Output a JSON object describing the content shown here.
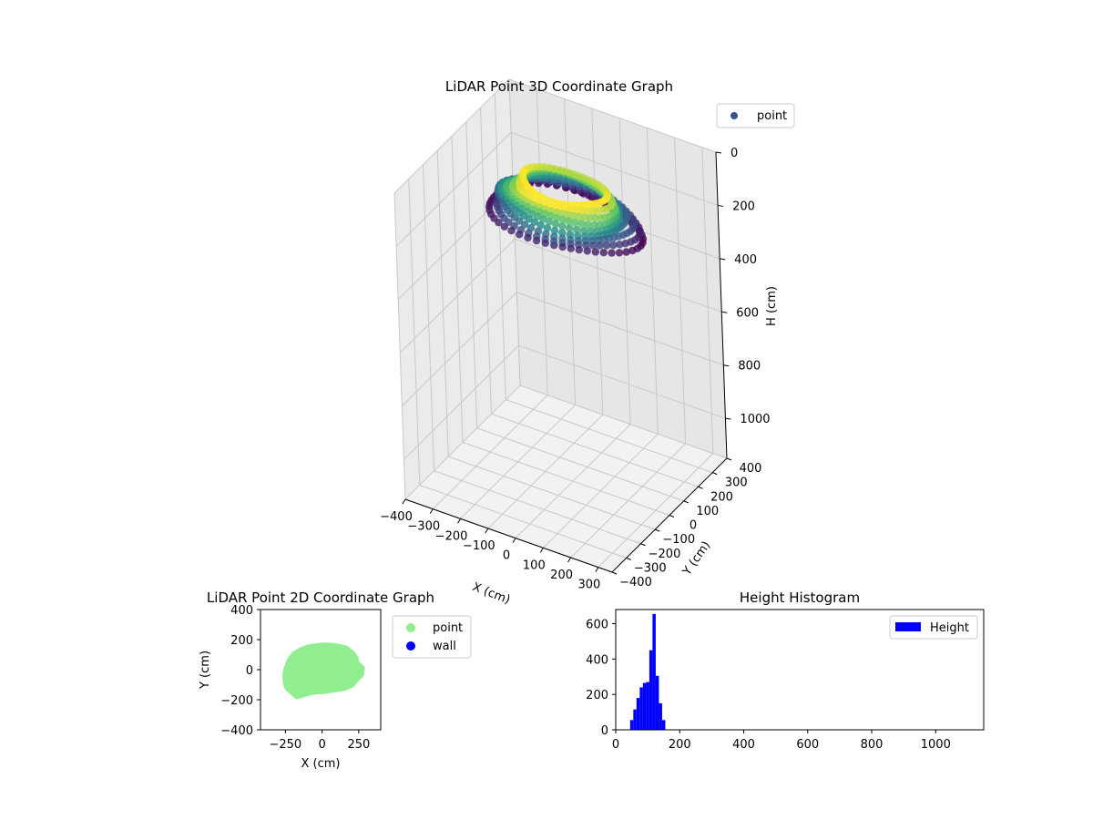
{
  "chart_data": [
    {
      "type": "scatter3d",
      "title": "LiDAR Point 3D Coordinate Graph",
      "xlabel": "X (cm)",
      "ylabel": "Y (cm)",
      "zlabel": "H (cm)",
      "xlim": [
        -400,
        350
      ],
      "ylim": [
        -400,
        400
      ],
      "zlim": [
        0,
        1150
      ],
      "z_inverted": true,
      "xticks": [
        "−400",
        "−300",
        "−200",
        "−100",
        "0",
        "100",
        "200",
        "300"
      ],
      "yticks": [
        "−400",
        "−300",
        "−200",
        "−100",
        "0",
        "100",
        "200",
        "300",
        "400"
      ],
      "zticks": [
        "0",
        "200",
        "400",
        "600",
        "800",
        "1000"
      ],
      "colormap": "viridis",
      "legend": {
        "position": "top-right",
        "entries": [
          {
            "label": "point",
            "color": "#3b528b"
          }
        ]
      },
      "series": [
        {
          "name": "point",
          "shape": "arc-shaped point band",
          "x_range": [
            -260,
            270
          ],
          "y_range": [
            -170,
            160
          ],
          "h_range": [
            40,
            160
          ]
        }
      ]
    },
    {
      "type": "scatter",
      "title": "LiDAR Point 2D Coordinate Graph",
      "xlabel": "X (cm)",
      "ylabel": "Y (cm)",
      "xlim": [
        -420,
        400
      ],
      "ylim": [
        -400,
        400
      ],
      "xticks": [
        "−250",
        "0",
        "250"
      ],
      "yticks": [
        "400",
        "200",
        "0",
        "−200",
        "−400"
      ],
      "legend": {
        "position": "right",
        "entries": [
          {
            "label": "point",
            "color": "#90ee90"
          },
          {
            "label": "wall",
            "color": "#0000ff"
          }
        ]
      },
      "series": [
        {
          "name": "point",
          "color": "#90ee90",
          "outline": [
            [
              -245,
              -90
            ],
            [
              -250,
              -40
            ],
            [
              -240,
              10
            ],
            [
              -220,
              60
            ],
            [
              -190,
              100
            ],
            [
              -150,
              125
            ],
            [
              -100,
              145
            ],
            [
              -40,
              155
            ],
            [
              20,
              160
            ],
            [
              90,
              155
            ],
            [
              160,
              140
            ],
            [
              200,
              110
            ],
            [
              225,
              80
            ],
            [
              235,
              40
            ],
            [
              270,
              10
            ],
            [
              265,
              -30
            ],
            [
              235,
              -60
            ],
            [
              200,
              -100
            ],
            [
              150,
              -120
            ],
            [
              80,
              -130
            ],
            [
              20,
              -140
            ],
            [
              -60,
              -145
            ],
            [
              -120,
              -160
            ],
            [
              -170,
              -175
            ],
            [
              -200,
              -150
            ],
            [
              -235,
              -120
            ]
          ]
        },
        {
          "name": "wall",
          "color": "#0000ff",
          "points": []
        }
      ]
    },
    {
      "type": "histogram",
      "title": "Height Histogram",
      "xlim": [
        0,
        1150
      ],
      "ylim": [
        0,
        680
      ],
      "xticks": [
        "0",
        "200",
        "400",
        "600",
        "800",
        "1000"
      ],
      "yticks": [
        "0",
        "200",
        "400",
        "600"
      ],
      "color": "#0000ff",
      "legend": {
        "position": "top-right",
        "entries": [
          {
            "label": "Height",
            "color": "#0000ff"
          }
        ]
      },
      "bins": [
        {
          "x0": 45,
          "x1": 55,
          "count": 55
        },
        {
          "x0": 55,
          "x1": 65,
          "count": 115
        },
        {
          "x0": 65,
          "x1": 75,
          "count": 180
        },
        {
          "x0": 75,
          "x1": 85,
          "count": 240
        },
        {
          "x0": 85,
          "x1": 95,
          "count": 265
        },
        {
          "x0": 95,
          "x1": 105,
          "count": 270
        },
        {
          "x0": 105,
          "x1": 115,
          "count": 450
        },
        {
          "x0": 115,
          "x1": 125,
          "count": 655
        },
        {
          "x0": 125,
          "x1": 135,
          "count": 305
        },
        {
          "x0": 135,
          "x1": 145,
          "count": 150
        },
        {
          "x0": 145,
          "x1": 155,
          "count": 55
        }
      ]
    }
  ]
}
